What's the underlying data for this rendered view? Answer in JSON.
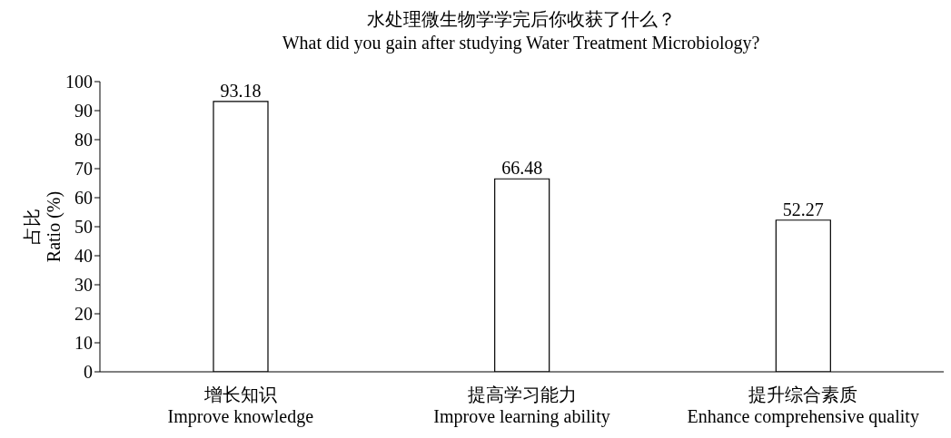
{
  "chart_data": {
    "type": "bar",
    "title": "水处理微生物学学完后你收获了什么？",
    "subtitle": "What did you gain after studying Water Treatment Microbiology?",
    "ylabel": "占比\nRatio (%)",
    "categories": [
      "增长知识\nImprove knowledge",
      "提高学习能力\nImprove learning ability",
      "提升综合素质\nEnhance comprehensive quality"
    ],
    "values": [
      93.18,
      66.48,
      52.27
    ],
    "color": "#ffffff",
    "ylim": [
      0,
      100
    ],
    "yticks": [
      0,
      10,
      20,
      30,
      40,
      50,
      60,
      70,
      80,
      90,
      100
    ],
    "data_labels": true
  }
}
